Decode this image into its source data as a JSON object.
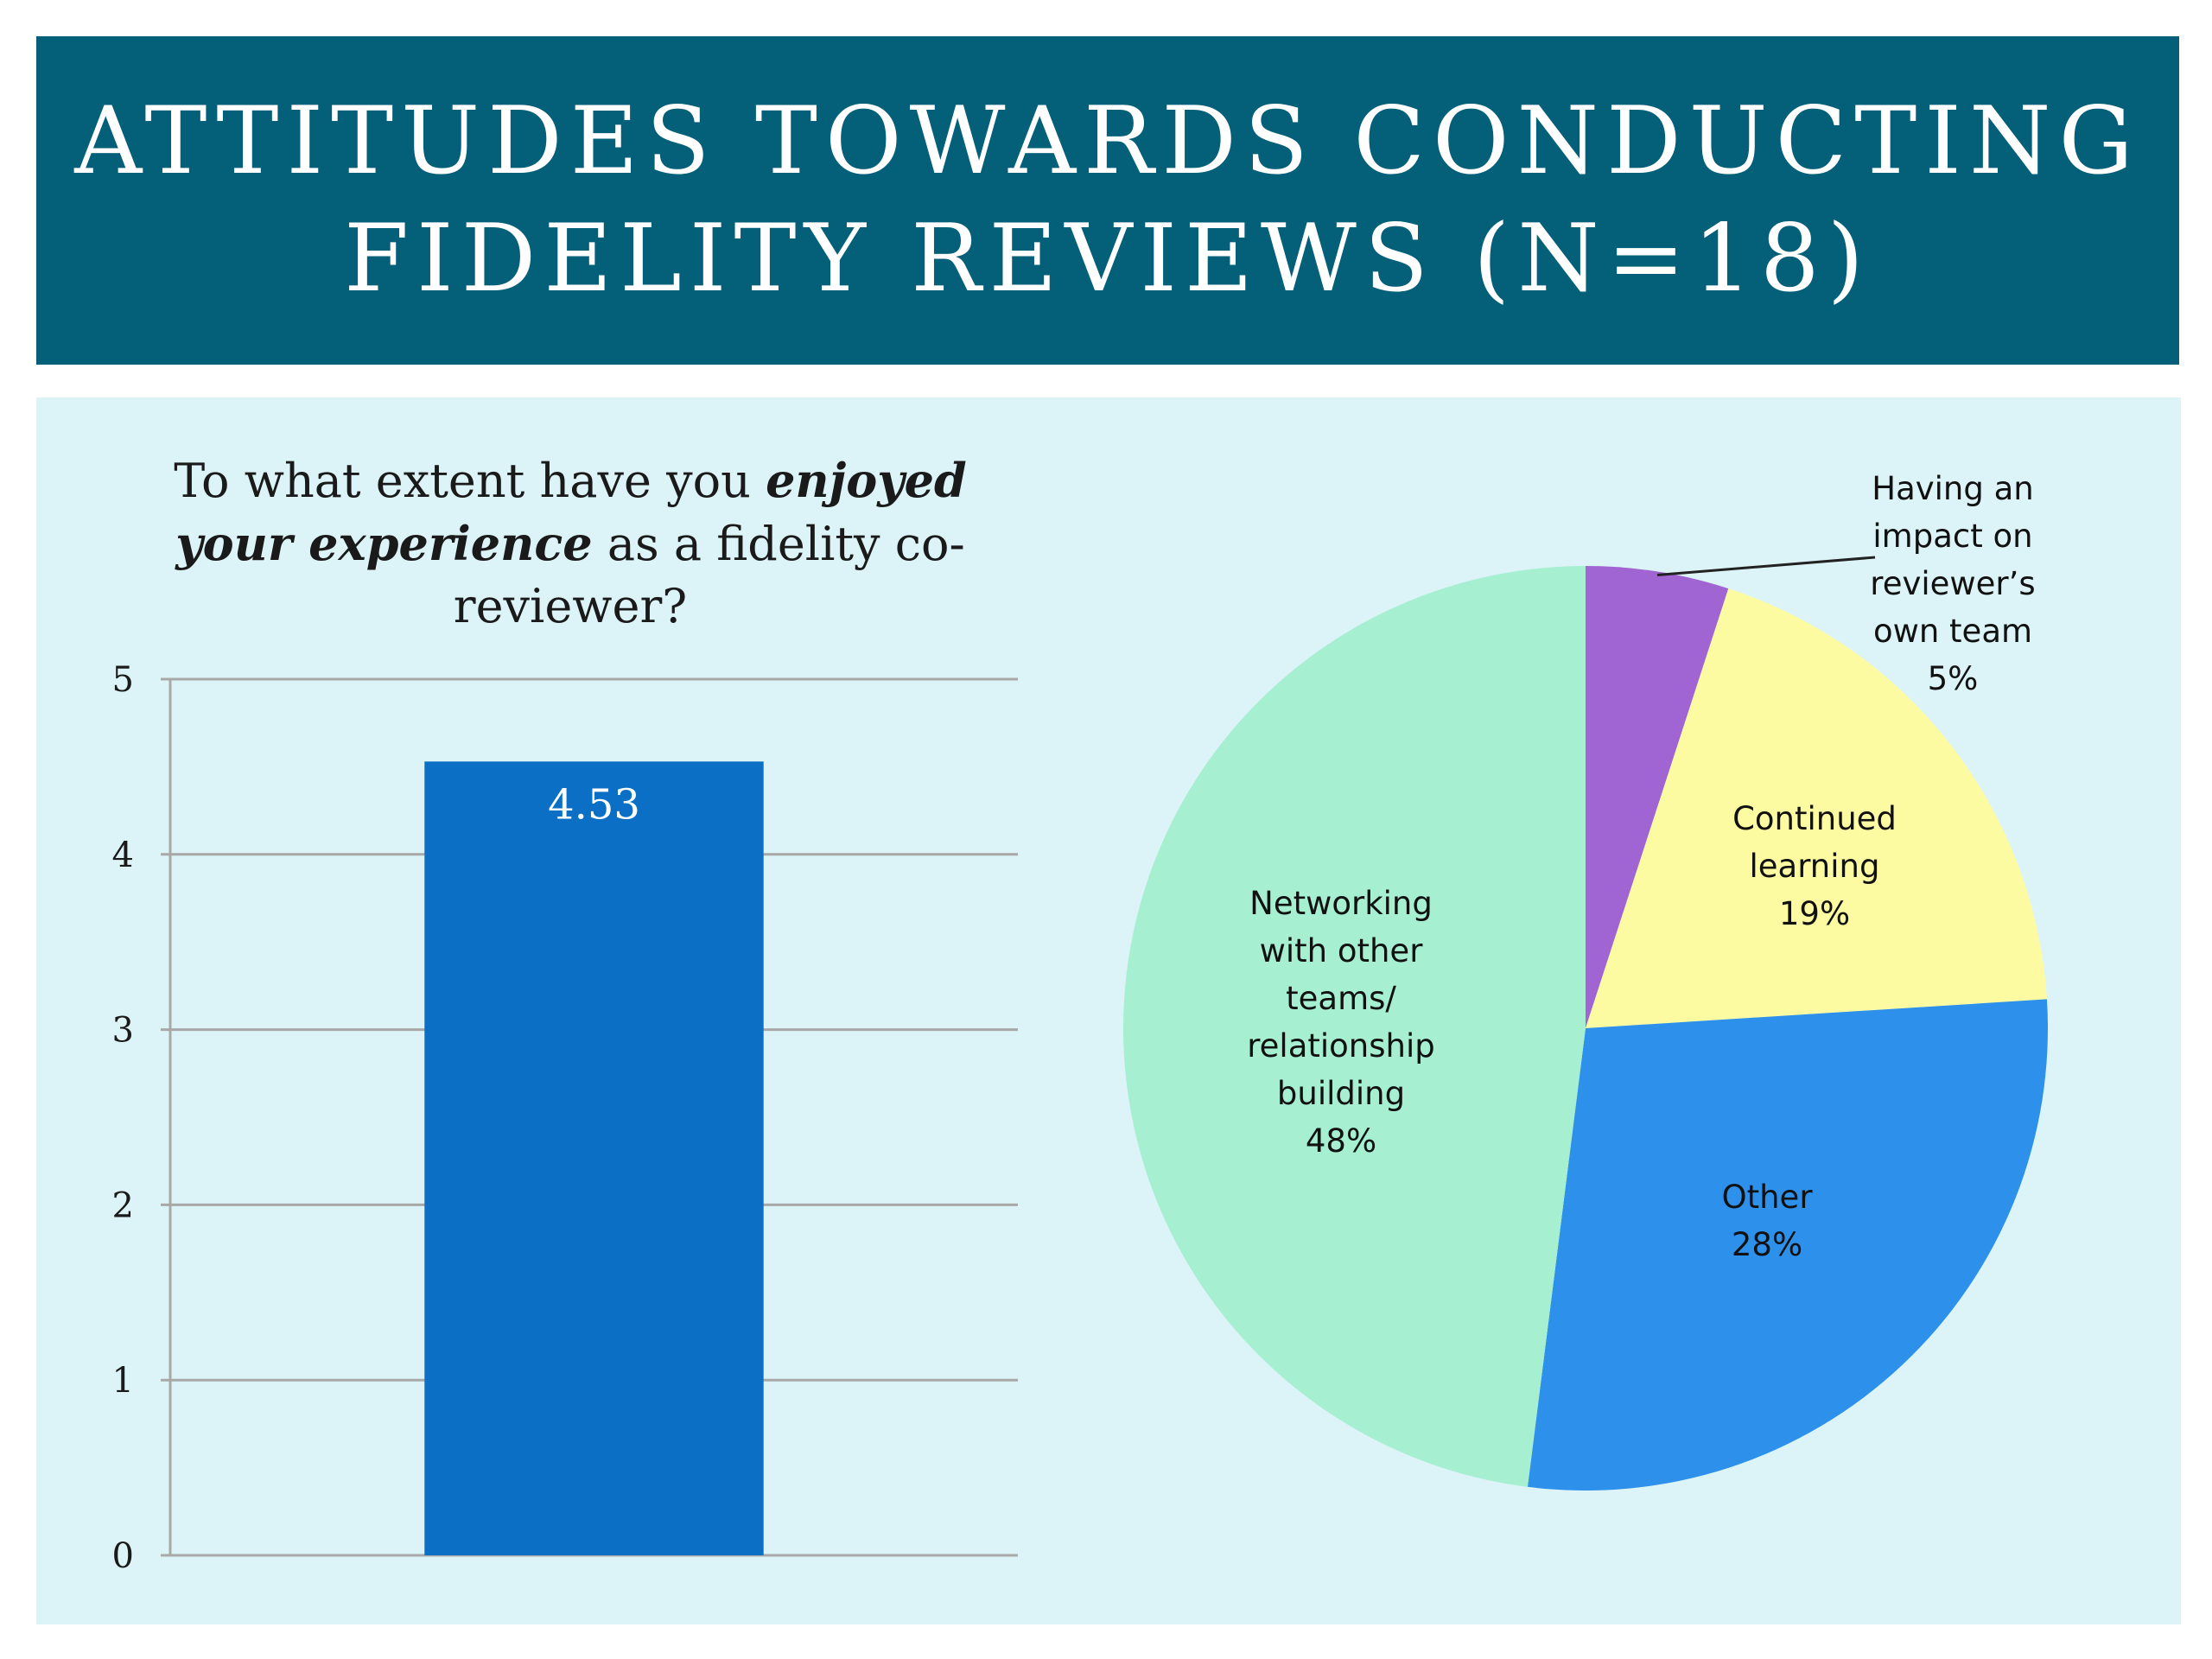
{
  "title": {
    "line1": "ATTITUDES TOWARDS CONDUCTING",
    "line2": "FIDELITY REVIEWS (N=18)"
  },
  "colors": {
    "banner": "#045f79",
    "panel": "#dcf4f8",
    "bar": "#0c6fc6",
    "grid": "#a8a8a8"
  },
  "chart_data": [
    {
      "type": "bar",
      "title_parts": {
        "a": "To what extent have you ",
        "b": "enjoyed your experience",
        "c": " as a fidelity co-reviewer?"
      },
      "categories": [
        ""
      ],
      "values": [
        4.53
      ],
      "data_labels": [
        "4.53"
      ],
      "ylim": [
        0,
        5
      ],
      "yticks": [
        "0",
        "1",
        "2",
        "3",
        "4",
        "5"
      ],
      "grid": true,
      "xlabel": "",
      "ylabel": ""
    },
    {
      "type": "pie",
      "start_angle_deg": 0,
      "direction": "clockwise",
      "slices": [
        {
          "name_lines": [
            "Having an",
            "impact on",
            "reviewer’s",
            "own team"
          ],
          "pct_label": "5%",
          "value": 5,
          "color": "#a065d2"
        },
        {
          "name_lines": [
            "Continued",
            "learning"
          ],
          "pct_label": "19%",
          "value": 19,
          "color": "#fdfba1"
        },
        {
          "name_lines": [
            "Other"
          ],
          "pct_label": "28%",
          "value": 28,
          "color": "#2d91ec"
        },
        {
          "name_lines": [
            "Networking",
            "with other",
            "teams/",
            "relationship",
            "building"
          ],
          "pct_label": "48%",
          "value": 48,
          "color": "#a6efd1"
        }
      ]
    }
  ]
}
